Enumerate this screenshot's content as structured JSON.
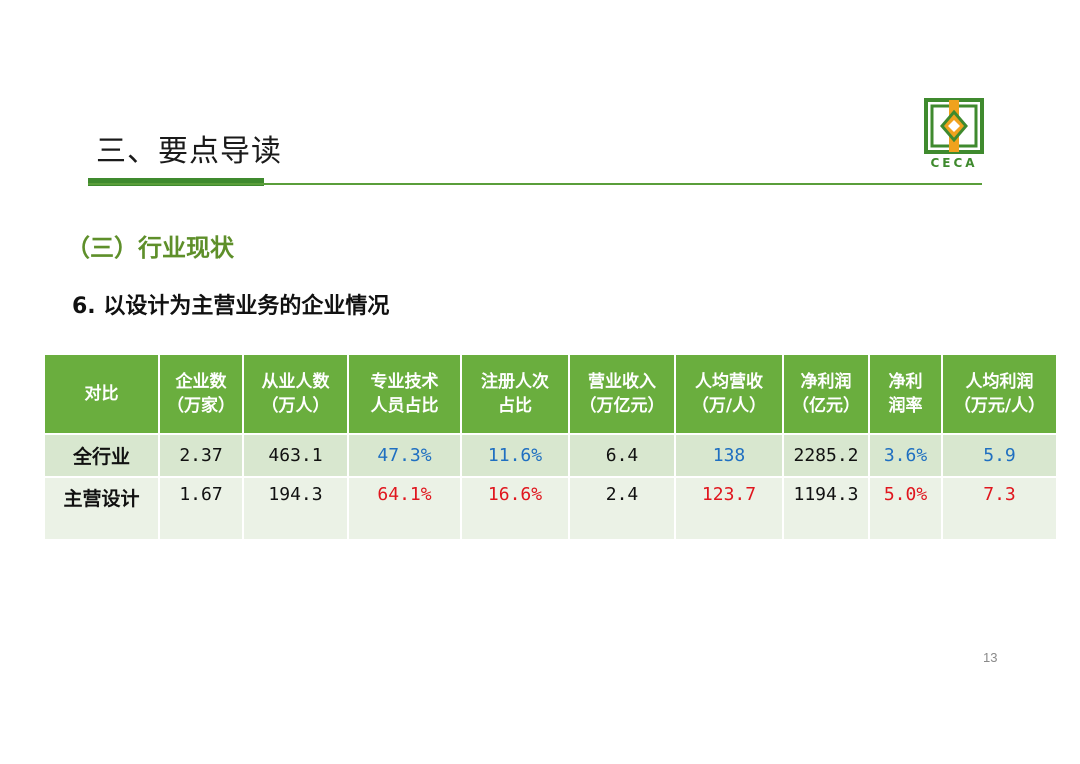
{
  "slide": {
    "title": "三、要点导读",
    "section": "（三）行业现状",
    "subtitle": "6. 以设计为主营业务的企业情况",
    "page_number": "13"
  },
  "logo": {
    "text": "CECA",
    "color": "#3f8a2e"
  },
  "colors": {
    "header_green": "#6aae3e",
    "highlight_blue": "#1f6fc1",
    "highlight_red": "#e0161e"
  },
  "table": {
    "headers": [
      "对比",
      "企业数\n（万家）",
      "从业人数\n（万人）",
      "专业技术\n人员占比",
      "注册人次\n占比",
      "营业收入\n（万亿元）",
      "人均营收\n（万/人）",
      "净利润\n（亿元）",
      "净利\n润率",
      "人均利润\n（万元/人）"
    ],
    "rows": [
      {
        "label": "全行业",
        "values": [
          "2.37",
          "463.1",
          "47.3%",
          "11.6%",
          "6.4",
          "138",
          "2285.2",
          "3.6%",
          "5.9"
        ]
      },
      {
        "label": "主营设计",
        "values": [
          "1.67",
          "194.3",
          "64.1%",
          "16.6%",
          "2.4",
          "123.7",
          "1194.3",
          "5.0%",
          "7.3"
        ]
      }
    ]
  }
}
